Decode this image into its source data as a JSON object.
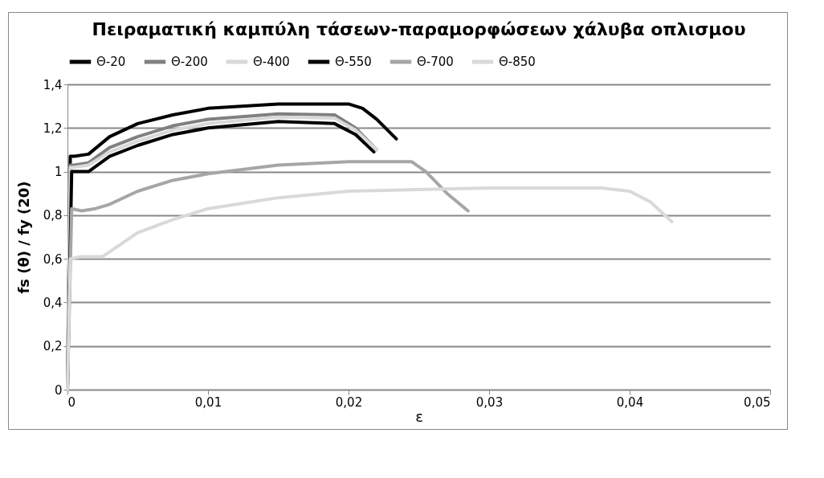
{
  "chart_data": {
    "type": "line",
    "title": "Πειραματική καμπύλη τάσεων-παραμορφώσεων\nχάλυβα οπλισμου",
    "xlabel": "ε",
    "ylabel": "fs (θ) / fy (20)",
    "xlim": [
      0,
      0.05
    ],
    "xticks": [
      0,
      {
        "value": 0.01,
        "label": "0,01"
      },
      {
        "value": 0.02,
        "label": "0,02"
      },
      {
        "value": 0.03,
        "label": "0,03"
      },
      {
        "value": 0.04,
        "label": "0,04"
      },
      {
        "value": 0.05,
        "label": "0,05"
      }
    ],
    "ylim": [
      0,
      1.4
    ],
    "yticks": [
      0,
      {
        "value": 0.2,
        "label": "0,2"
      },
      {
        "value": 0.4,
        "label": "0,4"
      },
      {
        "value": 0.6,
        "label": "0,6"
      },
      {
        "value": 0.8,
        "label": "0,8"
      },
      1,
      {
        "value": 1.2,
        "label": "1,2"
      },
      {
        "value": 1.4,
        "label": "1,4"
      }
    ],
    "grid": "y",
    "legend": "top",
    "marker": "none",
    "line_style": "solid",
    "series": [
      {
        "name": "Θ-20",
        "color": "#000000",
        "x": [
          0,
          0.0002,
          0.0005,
          0.0015,
          0.003,
          0.005,
          0.0075,
          0.01,
          0.015,
          0.02,
          0.021,
          0.022,
          0.0234
        ],
        "values": [
          0,
          1.07,
          1.07,
          1.08,
          1.16,
          1.22,
          1.26,
          1.29,
          1.31,
          1.31,
          1.29,
          1.24,
          1.15
        ]
      },
      {
        "name": "Θ-200",
        "color": "#808080",
        "x": [
          0,
          0.0002,
          0.0005,
          0.0015,
          0.003,
          0.005,
          0.0075,
          0.01,
          0.015,
          0.019,
          0.0205,
          0.022
        ],
        "values": [
          0,
          1.03,
          1.03,
          1.04,
          1.11,
          1.16,
          1.21,
          1.24,
          1.265,
          1.26,
          1.2,
          1.1
        ]
      },
      {
        "name": "Θ-400",
        "color": "#d9d9d9",
        "x": [
          0,
          0.0002,
          0.0005,
          0.0015,
          0.003,
          0.005,
          0.0075,
          0.01,
          0.015,
          0.019,
          0.0205,
          0.022
        ],
        "values": [
          0,
          1.02,
          1.02,
          1.03,
          1.09,
          1.14,
          1.19,
          1.22,
          1.25,
          1.245,
          1.19,
          1.1
        ]
      },
      {
        "name": "Θ-550",
        "color": "#000000",
        "x": [
          0,
          0.0003,
          0.0005,
          0.0015,
          0.003,
          0.005,
          0.0075,
          0.01,
          0.015,
          0.019,
          0.0205,
          0.0218
        ],
        "values": [
          0,
          1.0,
          1.0,
          1.0,
          1.07,
          1.12,
          1.17,
          1.2,
          1.23,
          1.22,
          1.17,
          1.09
        ]
      },
      {
        "name": "Θ-700",
        "color": "#a6a6a6",
        "x": [
          0,
          0.0003,
          0.001,
          0.002,
          0.003,
          0.005,
          0.0075,
          0.01,
          0.015,
          0.02,
          0.0245,
          0.0255,
          0.027,
          0.0285
        ],
        "values": [
          0,
          0.83,
          0.82,
          0.83,
          0.85,
          0.91,
          0.96,
          0.99,
          1.03,
          1.045,
          1.045,
          1.0,
          0.9,
          0.82
        ]
      },
      {
        "name": "Θ-850",
        "color": "#d9d9d9",
        "x": [
          0,
          0.0002,
          0.001,
          0.0025,
          0.005,
          0.0075,
          0.01,
          0.015,
          0.02,
          0.03,
          0.038,
          0.04,
          0.0415,
          0.043
        ],
        "values": [
          0,
          0.6,
          0.61,
          0.61,
          0.72,
          0.78,
          0.83,
          0.88,
          0.91,
          0.925,
          0.925,
          0.91,
          0.86,
          0.77
        ]
      }
    ]
  }
}
